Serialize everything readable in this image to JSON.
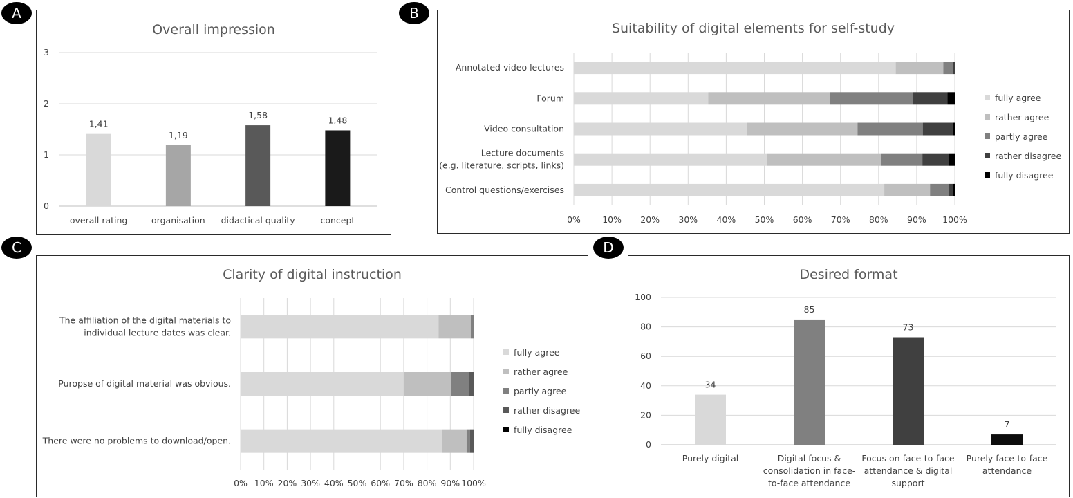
{
  "badges": {
    "a": "A",
    "b": "B",
    "c": "C",
    "d": "D"
  },
  "chart_data": [
    {
      "type": "bar",
      "title": "Overall impression",
      "categories": [
        "overall rating",
        "organisation",
        "didactical quality",
        "concept"
      ],
      "values": [
        1.41,
        1.19,
        1.58,
        1.48
      ],
      "value_labels": [
        "1,41",
        "1,19",
        "1,58",
        "1,48"
      ],
      "ylim": [
        0,
        3
      ],
      "yticks": [
        "0",
        "1",
        "2",
        "3"
      ],
      "colors": [
        "#d9d9d9",
        "#a6a6a6",
        "#595959",
        "#1a1a1a"
      ],
      "grid": true
    },
    {
      "type": "bar",
      "orientation": "horizontal-stacked-percent",
      "title": "Suitability of digital elements for self-study",
      "categories": [
        [
          "Annotated video lectures"
        ],
        [
          "Forum"
        ],
        [
          "Video consultation"
        ],
        [
          "Lecture documents",
          "(e.g. literature, scripts, links)"
        ],
        [
          "Control questions/exercises"
        ]
      ],
      "series": [
        {
          "name": "fully agree",
          "color": "#d9d9d9",
          "values": [
            84.5,
            35.3,
            45.4,
            50.8,
            81.5
          ]
        },
        {
          "name": "rather agree",
          "color": "#bfbfbf",
          "values": [
            12.5,
            32.0,
            29.1,
            29.8,
            12.0
          ]
        },
        {
          "name": "partly agree",
          "color": "#808080",
          "values": [
            2.5,
            21.8,
            17.1,
            10.9,
            5.0
          ]
        },
        {
          "name": "rather disagree",
          "color": "#404040",
          "values": [
            0.5,
            9.0,
            7.8,
            7.0,
            1.0
          ]
        },
        {
          "name": "fully disagree",
          "color": "#000000",
          "values": [
            0.0,
            1.9,
            0.6,
            1.5,
            0.5
          ]
        }
      ],
      "xticks": [
        "0%",
        "10%",
        "20%",
        "30%",
        "40%",
        "50%",
        "60%",
        "70%",
        "80%",
        "90%",
        "100%"
      ],
      "legend": "right"
    },
    {
      "type": "bar",
      "orientation": "horizontal-stacked-percent",
      "title": "Clarity of digital instruction",
      "categories": [
        [
          "The affiliation of the digital materials to",
          "individual lecture dates was clear."
        ],
        [
          "Puropse of digital material was obvious."
        ],
        [
          "There were no problems to download/open."
        ]
      ],
      "series": [
        {
          "name": "fully agree",
          "color": "#d9d9d9",
          "values": [
            85.0,
            70.0,
            86.5
          ]
        },
        {
          "name": "rather agree",
          "color": "#bfbfbf",
          "values": [
            13.8,
            20.5,
            10.5
          ]
        },
        {
          "name": "partly agree",
          "color": "#808080",
          "values": [
            1.2,
            7.5,
            1.5
          ]
        },
        {
          "name": "rather disagree",
          "color": "#595959",
          "values": [
            0.0,
            2.0,
            1.5
          ]
        },
        {
          "name": "fully disagree",
          "color": "#000000",
          "values": [
            0.0,
            0.0,
            0.0
          ]
        }
      ],
      "xticks": [
        "0%",
        "10%",
        "20%",
        "30%",
        "40%",
        "50%",
        "60%",
        "70%",
        "80%",
        "90%",
        "100%"
      ],
      "legend": "right"
    },
    {
      "type": "bar",
      "title": "Desired format",
      "categories": [
        [
          "Purely digital"
        ],
        [
          "Digital focus &",
          "consolidation in face-",
          "to-face attendance"
        ],
        [
          "Focus on face-to-face",
          "attendance & digital",
          "support"
        ],
        [
          "Purely face-to-face",
          "attendance"
        ]
      ],
      "values": [
        34,
        85,
        73,
        7
      ],
      "value_labels": [
        "34",
        "85",
        "73",
        "7"
      ],
      "ylim": [
        0,
        100
      ],
      "yticks": [
        "0",
        "20",
        "40",
        "60",
        "80",
        "100"
      ],
      "colors": [
        "#d9d9d9",
        "#808080",
        "#404040",
        "#0d0d0d"
      ],
      "grid": true
    }
  ]
}
